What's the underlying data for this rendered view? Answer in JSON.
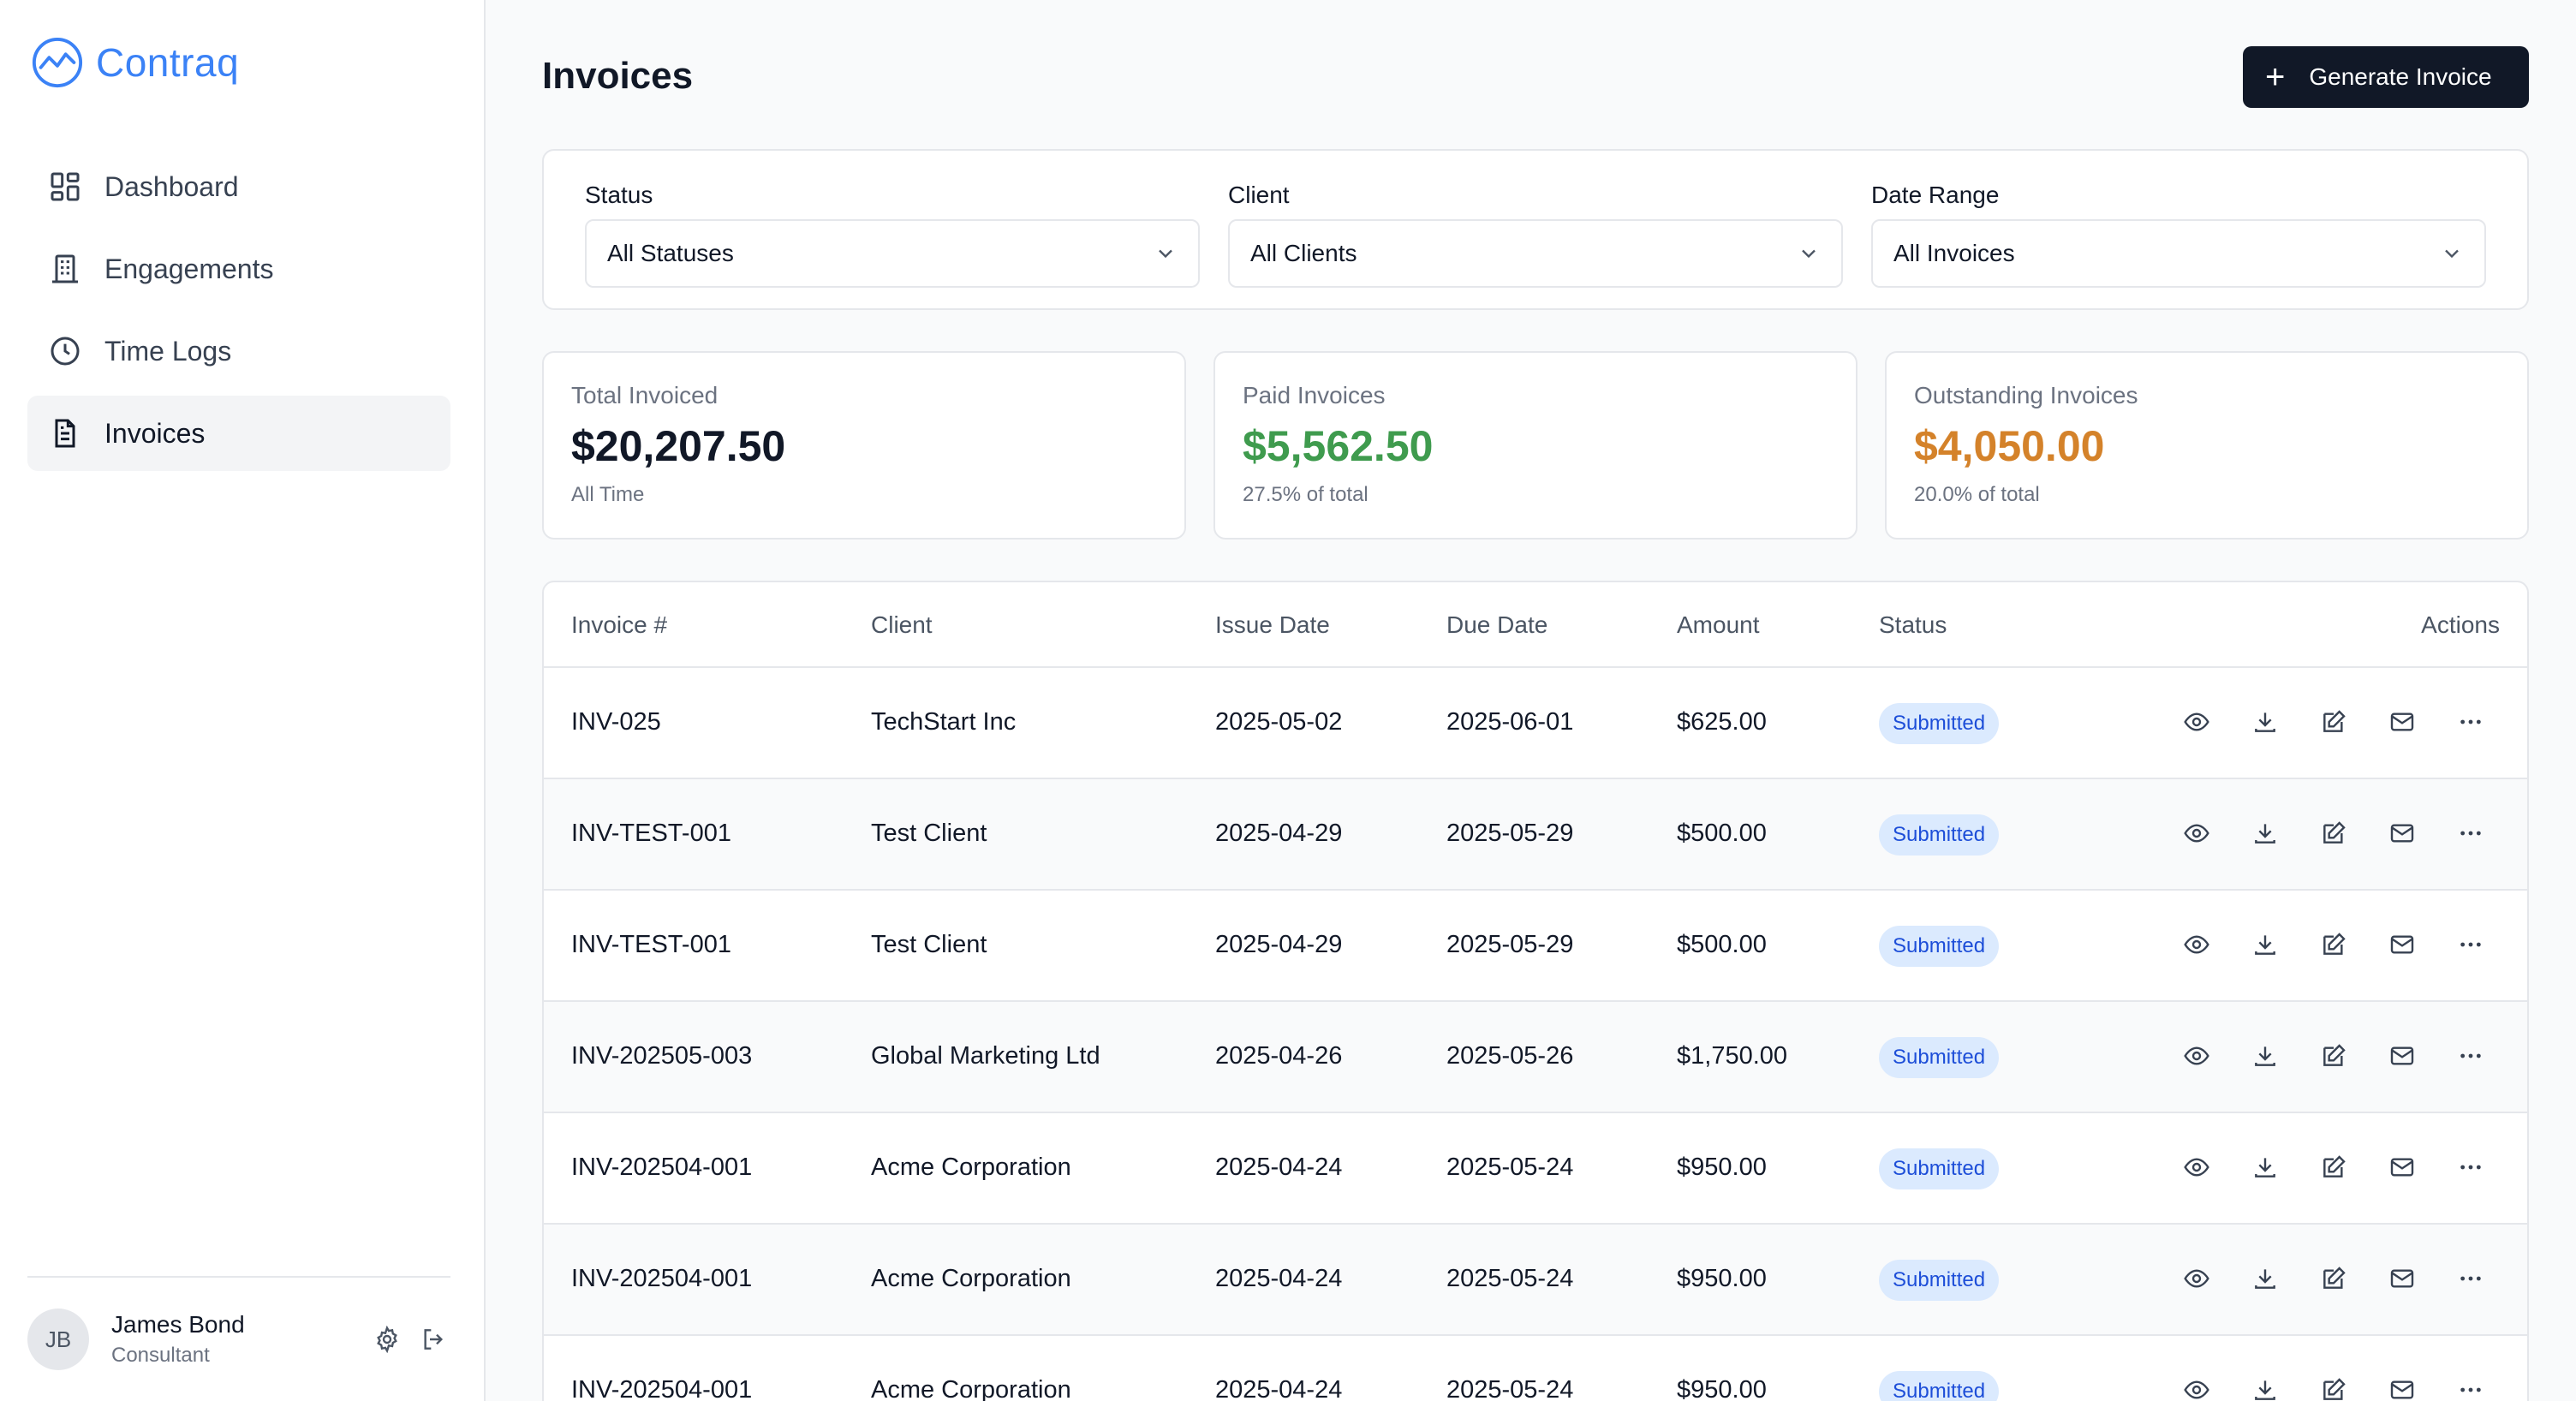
{
  "app": {
    "name": "Contraq"
  },
  "sidebar": {
    "items": [
      {
        "label": "Dashboard",
        "icon": "dashboard-icon",
        "active": false
      },
      {
        "label": "Engagements",
        "icon": "building-icon",
        "active": false
      },
      {
        "label": "Time Logs",
        "icon": "clock-icon",
        "active": false
      },
      {
        "label": "Invoices",
        "icon": "document-icon",
        "active": true
      }
    ],
    "user": {
      "initials": "JB",
      "name": "James Bond",
      "role": "Consultant"
    }
  },
  "header": {
    "title": "Invoices",
    "generate_label": "Generate Invoice"
  },
  "filters": {
    "status": {
      "label": "Status",
      "value": "All Statuses"
    },
    "client": {
      "label": "Client",
      "value": "All Clients"
    },
    "date_range": {
      "label": "Date Range",
      "value": "All Invoices"
    }
  },
  "stats": {
    "total": {
      "label": "Total Invoiced",
      "value": "$20,207.50",
      "sub": "All Time",
      "color": "#111827"
    },
    "paid": {
      "label": "Paid Invoices",
      "value": "$5,562.50",
      "sub": "27.5% of total",
      "color": "#3f9b4e"
    },
    "outstanding": {
      "label": "Outstanding Invoices",
      "value": "$4,050.00",
      "sub": "20.0% of total",
      "color": "#d4822a"
    }
  },
  "table": {
    "columns": [
      "Invoice #",
      "Client",
      "Issue Date",
      "Due Date",
      "Amount",
      "Status",
      "Actions"
    ],
    "rows": [
      {
        "invoice": "INV-025",
        "client": "TechStart Inc",
        "issue": "2025-05-02",
        "due": "2025-06-01",
        "amount": "$625.00",
        "status": "Submitted"
      },
      {
        "invoice": "INV-TEST-001",
        "client": "Test Client",
        "issue": "2025-04-29",
        "due": "2025-05-29",
        "amount": "$500.00",
        "status": "Submitted"
      },
      {
        "invoice": "INV-TEST-001",
        "client": "Test Client",
        "issue": "2025-04-29",
        "due": "2025-05-29",
        "amount": "$500.00",
        "status": "Submitted"
      },
      {
        "invoice": "INV-202505-003",
        "client": "Global Marketing Ltd",
        "issue": "2025-04-26",
        "due": "2025-05-26",
        "amount": "$1,750.00",
        "status": "Submitted"
      },
      {
        "invoice": "INV-202504-001",
        "client": "Acme Corporation",
        "issue": "2025-04-24",
        "due": "2025-05-24",
        "amount": "$950.00",
        "status": "Submitted"
      },
      {
        "invoice": "INV-202504-001",
        "client": "Acme Corporation",
        "issue": "2025-04-24",
        "due": "2025-05-24",
        "amount": "$950.00",
        "status": "Submitted"
      },
      {
        "invoice": "INV-202504-001",
        "client": "Acme Corporation",
        "issue": "2025-04-24",
        "due": "2025-05-24",
        "amount": "$950.00",
        "status": "Submitted"
      }
    ]
  },
  "colors": {
    "accent": "#3b82f6",
    "badge_bg": "#dbeafe",
    "badge_text": "#1d4ed8"
  }
}
